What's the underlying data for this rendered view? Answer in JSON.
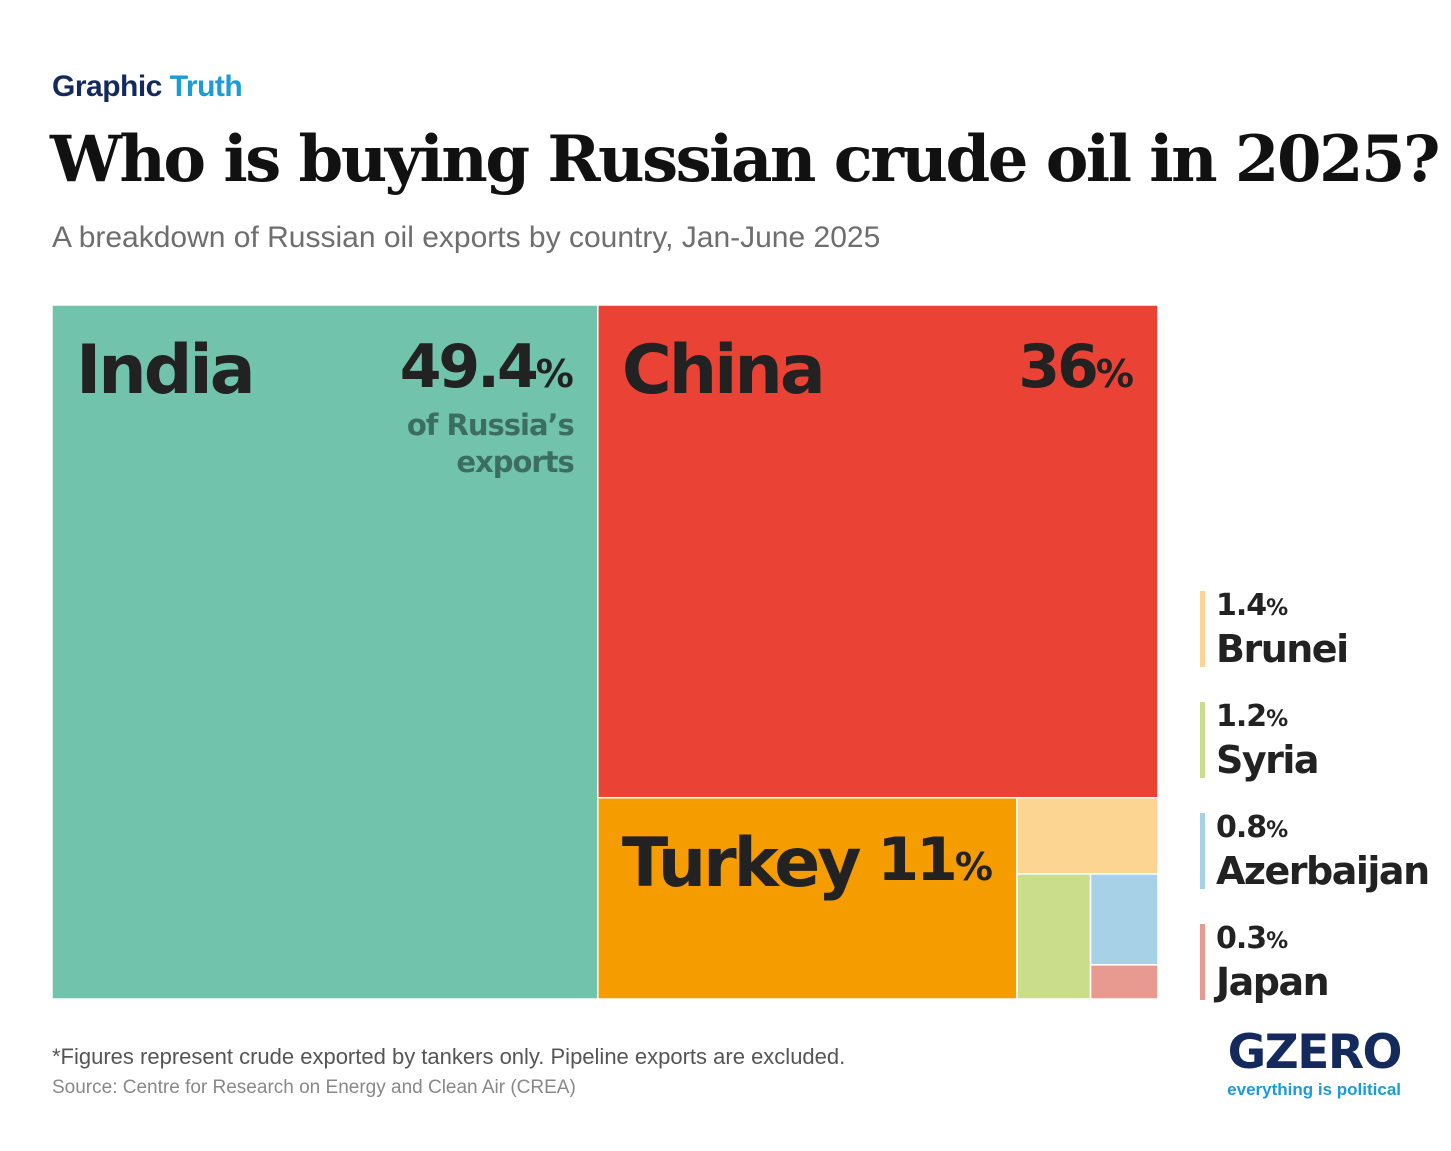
{
  "header": {
    "kicker_part1": "Graphic",
    "kicker_part2": "Truth",
    "title": "Who is buying Russian crude oil in 2025?",
    "subtitle": "A breakdown of Russian oil exports by country, Jan-June 2025"
  },
  "chart_data": {
    "type": "treemap",
    "unit": "%",
    "categories": [
      "India",
      "China",
      "Turkey",
      "Brunei",
      "Syria",
      "Azerbaijan",
      "Japan"
    ],
    "values": [
      49.4,
      36,
      11,
      1.4,
      1.2,
      0.8,
      0.3
    ],
    "value_labels": [
      "49.4",
      "36",
      "11",
      "1.4",
      "1.2",
      "0.8",
      "0.3"
    ],
    "colors": [
      "#72c3ac",
      "#ea4335",
      "#f59c00",
      "#fcd592",
      "#cadd8a",
      "#a6d1e7",
      "#e89990"
    ],
    "annotation": "of Russia’s exports",
    "annotation_lines": [
      "of Russia’s",
      "exports"
    ]
  },
  "footer": {
    "footnote": "*Figures represent crude exported by tankers only. Pipeline exports are excluded.",
    "source": "Source: Centre for Research on Energy and Clean Air (CREA)"
  },
  "logo": {
    "wordmark": "GZERO",
    "tagline": "everything is political"
  }
}
